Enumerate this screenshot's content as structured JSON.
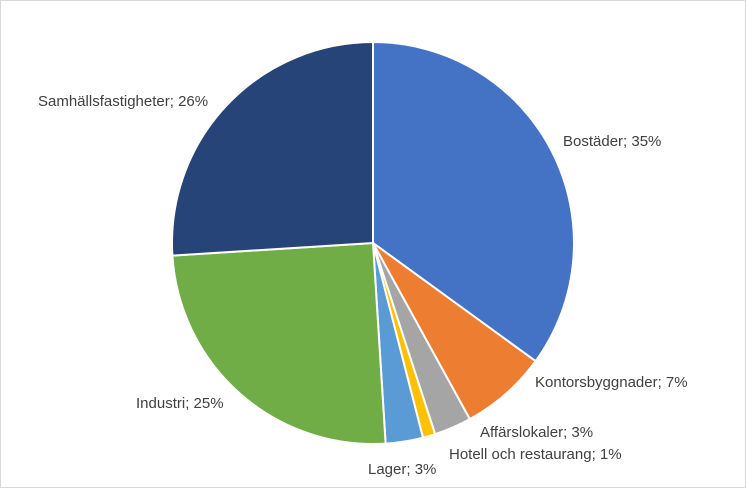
{
  "chart_data": {
    "type": "pie",
    "title": "",
    "slices": [
      {
        "name": "Bostäder",
        "value": 35,
        "label": "Bostäder; 35%",
        "color": "#4472C4"
      },
      {
        "name": "Kontorsbyggnader",
        "value": 7,
        "label": "Kontorsbyggnader; 7%",
        "color": "#ED7D31"
      },
      {
        "name": "Affärslokaler",
        "value": 3,
        "label": "Affärslokaler; 3%",
        "color": "#A5A5A5"
      },
      {
        "name": "Hotell och restaurang",
        "value": 1,
        "label": "Hotell och restaurang; 1%",
        "color": "#FFC000"
      },
      {
        "name": "Lager",
        "value": 3,
        "label": "Lager; 3%",
        "color": "#5B9BD5"
      },
      {
        "name": "Industri",
        "value": 25,
        "label": "Industri; 25%",
        "color": "#70AD47"
      },
      {
        "name": "Samhällsfastigheter",
        "value": 26,
        "label": "Samhällsfastigheter; 26%",
        "color": "#264478"
      }
    ],
    "legend": "none",
    "data_labels": "outside"
  }
}
